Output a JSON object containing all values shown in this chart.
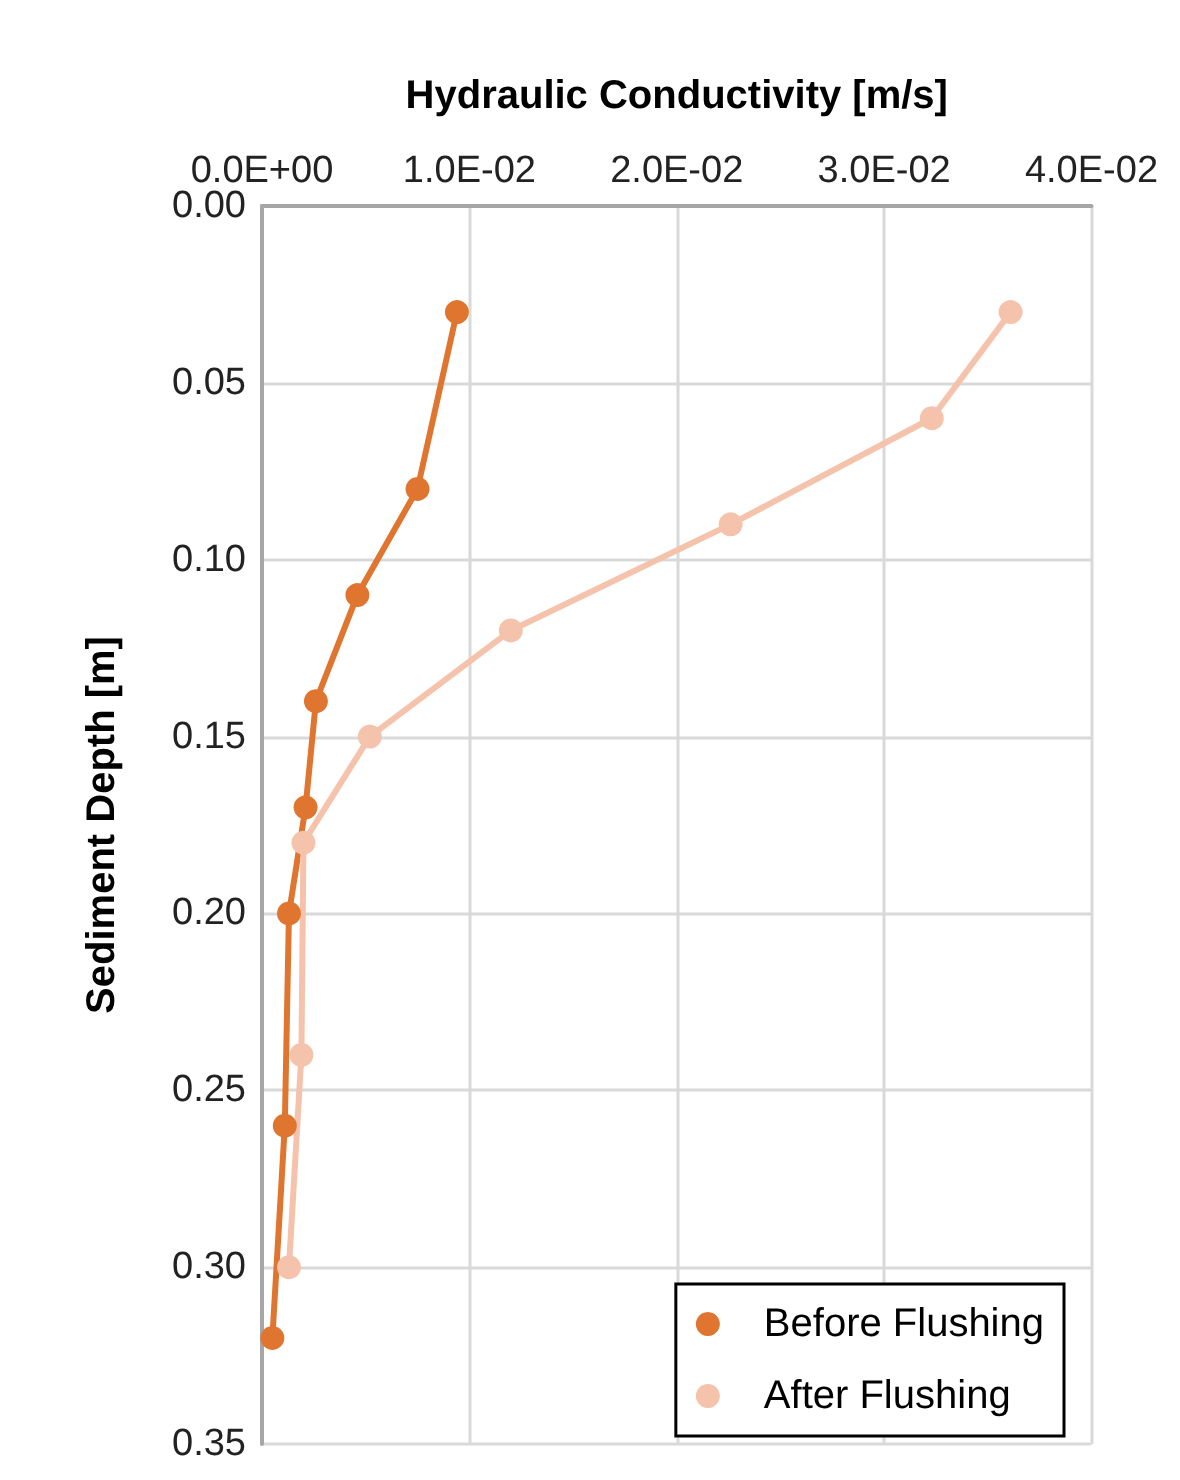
{
  "chart_data": {
    "type": "line",
    "xlabel": "Hydraulic Conductivity [m/s]",
    "ylabel": "Sediment Depth [m]",
    "xlim": [
      0,
      0.04
    ],
    "xticks": [
      {
        "value": 0,
        "label": "0.0E+00"
      },
      {
        "value": 0.01,
        "label": "1.0E-02"
      },
      {
        "value": 0.02,
        "label": "2.0E-02"
      },
      {
        "value": 0.03,
        "label": "3.0E-02"
      },
      {
        "value": 0.04,
        "label": "4.0E-02"
      }
    ],
    "ylim": [
      0.35,
      0
    ],
    "yticks": [
      {
        "value": 0,
        "label": "0.00"
      },
      {
        "value": 0.05,
        "label": "0.05"
      },
      {
        "value": 0.1,
        "label": "0.10"
      },
      {
        "value": 0.15,
        "label": "0.15"
      },
      {
        "value": 0.2,
        "label": "0.20"
      },
      {
        "value": 0.25,
        "label": "0.25"
      },
      {
        "value": 0.3,
        "label": "0.30"
      },
      {
        "value": 0.35,
        "label": "0.35"
      }
    ],
    "series": [
      {
        "name": "Before Flushing",
        "color": "#e07530",
        "x": [
          0.0094,
          0.0075,
          0.0046,
          0.0026,
          0.0021,
          0.0013,
          0.0011,
          0.0005
        ],
        "values": [
          0.03,
          0.08,
          0.11,
          0.14,
          0.17,
          0.2,
          0.26,
          0.32
        ]
      },
      {
        "name": "After Flushing",
        "color": "#f5c2ab",
        "x": [
          0.0361,
          0.0323,
          0.0226,
          0.012,
          0.0052,
          0.002,
          0.0019,
          0.0013
        ],
        "values": [
          0.03,
          0.06,
          0.09,
          0.12,
          0.15,
          0.18,
          0.24,
          0.3
        ]
      }
    ],
    "grid": true,
    "legend": "bottom right",
    "marker": "circle",
    "line_style": "solid"
  }
}
